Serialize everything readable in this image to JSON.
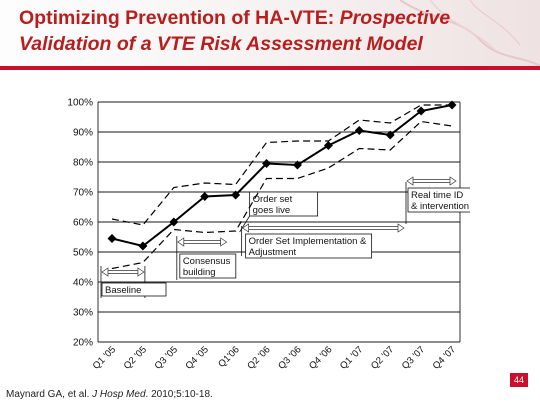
{
  "slide": {
    "title_line1_plain": "Optimizing Prevention of HA-VTE: ",
    "title_line1_italic": "Prospective",
    "title_line2": "Validation of a VTE Risk Assessment Model",
    "slide_number": "44",
    "citation_prefix": "Maynard GA, et al. ",
    "citation_journal": "J Hosp Med",
    "citation_suffix": ". 2010;5:10-18."
  },
  "colors": {
    "title": "#b81e1e",
    "accent_bar": "#c8102e",
    "series": "#000000"
  },
  "chart_data": {
    "type": "line",
    "categories": [
      "Q1 '05",
      "Q2 '05",
      "Q3 '05",
      "Q4 '05",
      "Q1'06",
      "Q2 '06",
      "Q3 '06",
      "Q4 '06",
      "Q1 '07",
      "Q2 '07",
      "Q3 '07",
      "Q4 '07"
    ],
    "series": [
      {
        "values": [
          54.5,
          52,
          60,
          68.5,
          69,
          79.5,
          79,
          85.5,
          90.5,
          89,
          97,
          99
        ],
        "style": "solid",
        "marker": "diamond"
      },
      {
        "values": [
          61,
          59,
          71.5,
          73,
          72.5,
          86.5,
          87,
          87,
          94,
          93,
          99,
          99
        ],
        "style": "dashed"
      },
      {
        "values": [
          44.5,
          46.5,
          57.5,
          56.5,
          57,
          74.5,
          74.5,
          78,
          84.5,
          84,
          93.5,
          92
        ],
        "style": "dashed"
      }
    ],
    "ylim": [
      20,
      100
    ],
    "yticks": [
      "20%",
      "30%",
      "40%",
      "50%",
      "60%",
      "70%",
      "80%",
      "90%",
      "100%"
    ],
    "grid": "horizontal",
    "annotations": [
      {
        "label": "Baseline",
        "span": [
          "Q1 '05",
          "Q2 '05"
        ]
      },
      {
        "label": "Consensus building",
        "lines": [
          "Consensus",
          "building"
        ],
        "span": [
          "Q3 '05",
          "Q4 '05"
        ]
      },
      {
        "label": "Order set goes live",
        "lines": [
          "Order set",
          "goes live"
        ]
      },
      {
        "label": "Order Set Implementation & Adjustment",
        "lines": [
          "Order Set Implementation &",
          "Adjustment"
        ]
      },
      {
        "label": "Real time ID & intervention",
        "lines": [
          "Real time ID",
          "& intervention"
        ]
      }
    ]
  }
}
